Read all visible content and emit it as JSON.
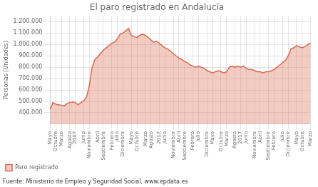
{
  "chart_data": {
    "type": "area",
    "title": "El paro registrado en Andalucía",
    "ylabel": "Personas (Unidades)",
    "annotations": [
      "Fuente: Ministerio de Empleo y Seguridad Social, www.epdata.es"
    ],
    "categories": [
      "Mayo",
      null,
      "Octubre",
      null,
      "Marzo",
      null,
      null,
      "Agosto",
      null,
      "2007",
      null,
      null,
      "Junio",
      null,
      "Noviembre",
      null,
      null,
      "Abril",
      null,
      "Septiembre",
      null,
      null,
      "Febrero",
      null,
      "Julio",
      null,
      "Diciembre",
      null,
      null,
      "Mayo",
      null,
      "Octubre",
      null,
      null,
      "Marzo",
      null,
      "Agosto",
      null,
      null,
      "2012",
      null,
      "Junio",
      null,
      null,
      "Noviembre",
      null,
      "Abril",
      null,
      "Septiembre",
      null,
      null,
      "Febrero",
      null,
      "Julio",
      null,
      null,
      "Diciembre",
      null,
      "Mayo",
      null,
      null,
      "Octubre",
      null,
      "Marzo",
      null,
      null,
      "Agosto",
      null,
      "2017",
      null,
      "Junio",
      null,
      null,
      "Noviembre",
      null,
      "Abril",
      null,
      null,
      "Septiembre",
      null,
      "Febrero",
      null,
      null,
      "Julio",
      null,
      "Diciembre",
      null,
      null,
      "Mayo",
      null,
      "Octubre",
      null,
      null,
      "Marzo"
    ],
    "series": [
      {
        "name": "Paro registrado",
        "color": "#d9694f",
        "values": [
          430000,
          490000,
          475000,
          470000,
          465000,
          460000,
          480000,
          490000,
          495000,
          490000,
          470000,
          490000,
          505000,
          540000,
          640000,
          800000,
          870000,
          890000,
          920000,
          950000,
          970000,
          990000,
          1010000,
          1020000,
          1050000,
          1090000,
          1100000,
          1120000,
          1140000,
          1080000,
          1070000,
          1060000,
          1080000,
          1090000,
          1080000,
          1060000,
          1040000,
          1020000,
          1030000,
          1010000,
          990000,
          970000,
          960000,
          940000,
          920000,
          900000,
          880000,
          870000,
          850000,
          840000,
          820000,
          810000,
          800000,
          810000,
          800000,
          790000,
          770000,
          760000,
          750000,
          760000,
          770000,
          760000,
          750000,
          760000,
          800000,
          810000,
          800000,
          810000,
          800000,
          810000,
          790000,
          780000,
          780000,
          770000,
          760000,
          760000,
          750000,
          760000,
          760000,
          770000,
          780000,
          800000,
          820000,
          840000,
          860000,
          900000,
          960000,
          970000,
          990000,
          980000,
          970000,
          980000,
          1000000,
          1010000
        ]
      }
    ],
    "ylim": [
      300000,
      1250000
    ],
    "yticks": [
      {
        "value": 400000,
        "label": "400.000"
      },
      {
        "value": 500000,
        "label": "500.000"
      },
      {
        "value": 600000,
        "label": "600.000"
      },
      {
        "value": 700000,
        "label": "700.000"
      },
      {
        "value": 800000,
        "label": "800.000"
      },
      {
        "value": 900000,
        "label": "900.000"
      },
      {
        "value": 1000000,
        "label": "1.000.000"
      },
      {
        "value": 1100000,
        "label": "1.100.000"
      },
      {
        "value": 1200000,
        "label": "1.200.000"
      }
    ],
    "grid": true,
    "legend": "bottom"
  }
}
